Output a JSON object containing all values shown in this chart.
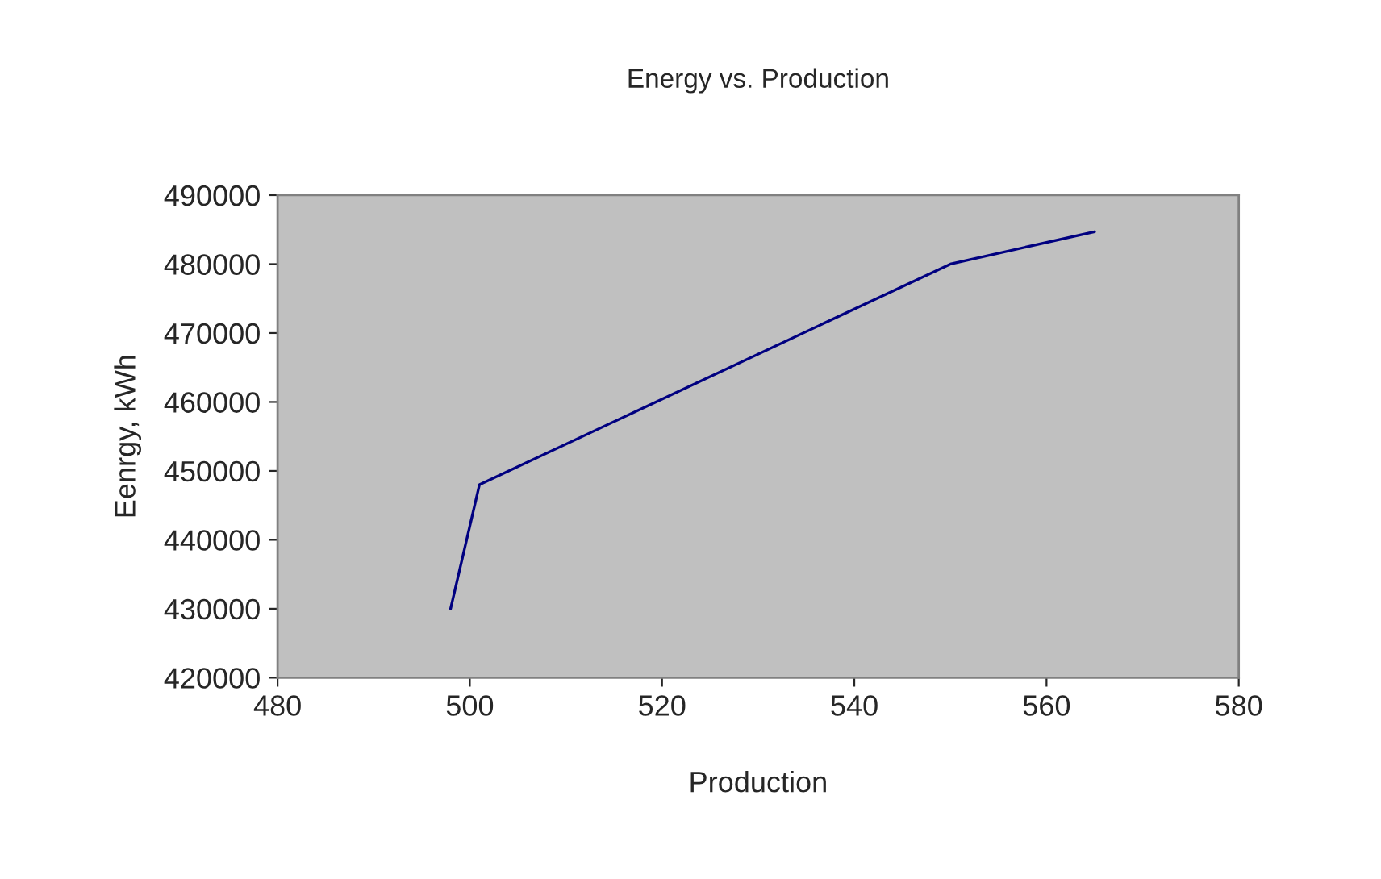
{
  "chart_data": {
    "type": "line",
    "title": "Energy vs. Production",
    "xlabel": "Production",
    "ylabel": "Eenrgy, kWh",
    "x": [
      498,
      501,
      550,
      565
    ],
    "series": [
      {
        "color": "#000080",
        "values": [
          430000,
          448000,
          480000,
          484700
        ]
      }
    ],
    "xlim": [
      480,
      580
    ],
    "xticks": [
      480,
      500,
      520,
      540,
      560,
      580
    ],
    "ylim": [
      420000,
      490000
    ],
    "yticks": [
      420000,
      430000,
      440000,
      450000,
      460000,
      470000,
      480000,
      490000
    ],
    "grid": false,
    "legend": false,
    "marker": "none",
    "line_style": "solid"
  }
}
